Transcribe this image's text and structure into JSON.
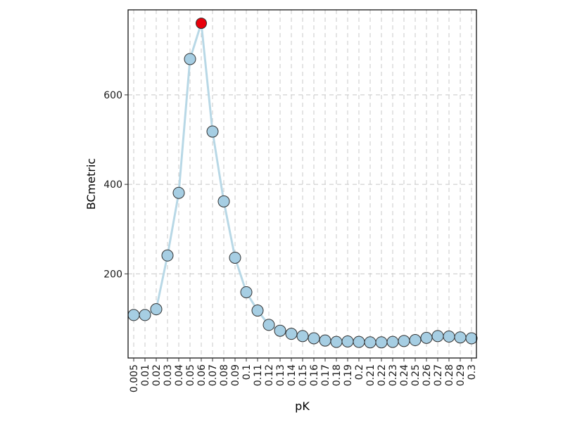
{
  "chart_data": {
    "type": "line",
    "title": "",
    "xlabel": "pK",
    "ylabel": "BCmetric",
    "x_categories": [
      "0.005",
      "0.01",
      "0.02",
      "0.03",
      "0.04",
      "0.05",
      "0.06",
      "0.07",
      "0.08",
      "0.09",
      "0.1",
      "0.11",
      "0.12",
      "0.13",
      "0.14",
      "0.15",
      "0.16",
      "0.17",
      "0.18",
      "0.19",
      "0.2",
      "0.21",
      "0.22",
      "0.23",
      "0.24",
      "0.25",
      "0.26",
      "0.27",
      "0.28",
      "0.29",
      "0.3"
    ],
    "series": [
      {
        "values": [
          108,
          108,
          121,
          241,
          381,
          680,
          760,
          518,
          362,
          236,
          159,
          118,
          86,
          73,
          66,
          61,
          56,
          51,
          48,
          49,
          48,
          47,
          47,
          48,
          50,
          52,
          57,
          61,
          60,
          58,
          56
        ]
      }
    ],
    "highlight": {
      "x": "0.06",
      "y": 760
    },
    "yticks": [
      200,
      400,
      600
    ],
    "ylim": [
      12,
      790
    ],
    "grid": true,
    "colors": {
      "line": "#b8d8e6",
      "point_fill": "#a6cee3",
      "point_stroke": "#333333",
      "highlight_fill": "#e8000b",
      "grid": "#c8c8c8",
      "frame": "#000000"
    }
  }
}
